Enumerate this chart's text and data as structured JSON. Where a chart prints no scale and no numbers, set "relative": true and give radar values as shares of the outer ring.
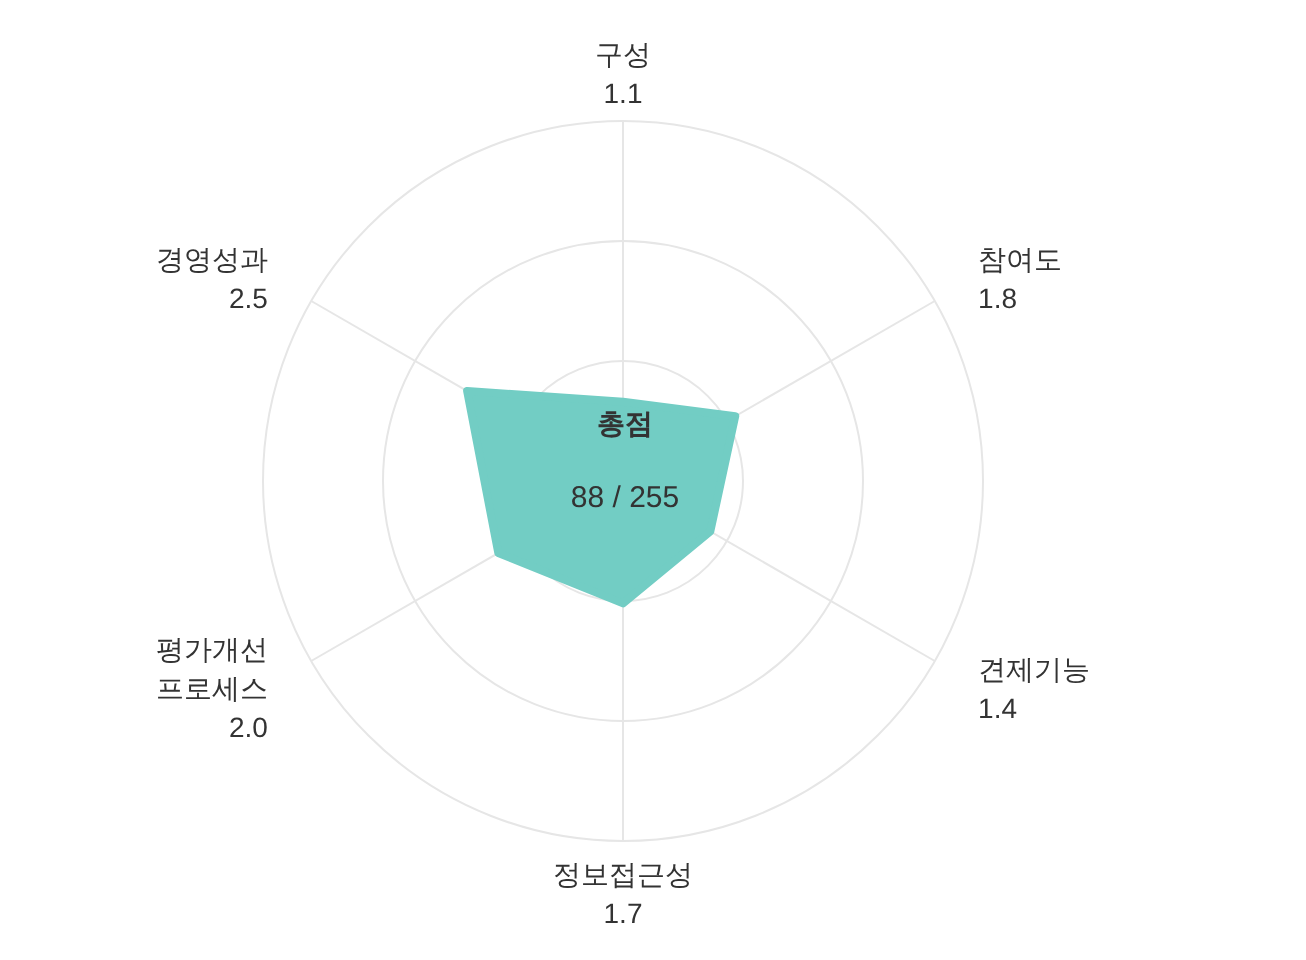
{
  "chart_data": {
    "type": "radar",
    "relative": true,
    "categories": [
      "구성 1.1",
      "참여도 1.8",
      "견제기능 1.4",
      "정보접근성 1.7",
      "평가개선 프로세스 2.0",
      "경영성과 2.5"
    ],
    "series": [
      {
        "color": "#72cdc4",
        "values": [
          0.22,
          0.36,
          0.28,
          0.34,
          0.4,
          0.5
        ]
      }
    ],
    "grid": true,
    "annotations": [
      "총점",
      "88 / 255"
    ]
  }
}
